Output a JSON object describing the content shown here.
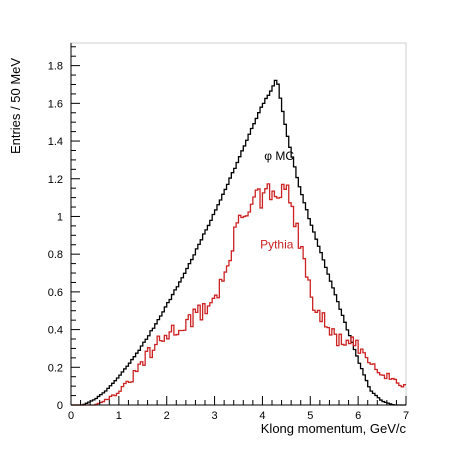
{
  "chart_data": {
    "type": "line",
    "title": "",
    "xlabel": "Klong momentum, GeV/c",
    "ylabel": "Entries / 50 MeV",
    "xlim": [
      0,
      7
    ],
    "ylim": [
      0,
      1.92
    ],
    "x_ticks": [
      0,
      1,
      2,
      3,
      4,
      5,
      6,
      7
    ],
    "y_ticks": [
      0,
      0.2,
      0.4,
      0.6,
      0.8,
      1,
      1.2,
      1.4,
      1.6,
      1.8
    ],
    "x_tick_labels": [
      "0",
      "1",
      "2",
      "3",
      "4",
      "5",
      "6",
      "7"
    ],
    "y_tick_labels": [
      "0",
      "0.2",
      "0.4",
      "0.6",
      "0.8",
      "1",
      "1.2",
      "1.4",
      "1.6",
      "1.8"
    ],
    "grid": false,
    "histogram_bin_width": 0.05,
    "series": [
      {
        "name": "φ MC",
        "color": "#000000",
        "label_position": [
          4.35,
          1.3
        ],
        "x": [
          0,
          0.25,
          0.5,
          0.75,
          1.0,
          1.25,
          1.5,
          1.75,
          2.0,
          2.25,
          2.5,
          2.75,
          3.0,
          3.25,
          3.5,
          3.75,
          4.0,
          4.25,
          4.3,
          4.5,
          4.75,
          5.0,
          5.25,
          5.5,
          5.75,
          6.0,
          6.25,
          6.5,
          6.75,
          7.0
        ],
        "y": [
          0,
          0.0,
          0.03,
          0.08,
          0.15,
          0.23,
          0.32,
          0.42,
          0.53,
          0.64,
          0.76,
          0.89,
          1.02,
          1.16,
          1.3,
          1.45,
          1.59,
          1.7,
          1.74,
          1.45,
          1.18,
          0.97,
          0.79,
          0.6,
          0.42,
          0.24,
          0.08,
          0.02,
          0.0,
          0.0
        ]
      },
      {
        "name": "Pythia",
        "color": "#cc2222",
        "label_position": [
          4.3,
          0.83
        ],
        "x": [
          0,
          0.5,
          0.75,
          1.0,
          1.25,
          1.5,
          1.75,
          2.0,
          2.25,
          2.5,
          2.75,
          3.0,
          3.25,
          3.4,
          3.5,
          3.6,
          3.75,
          3.9,
          4.0,
          4.1,
          4.25,
          4.4,
          4.5,
          4.6,
          4.75,
          4.9,
          5.0,
          5.25,
          5.5,
          5.75,
          6.0,
          6.25,
          6.5,
          6.75,
          7.0
        ],
        "y": [
          0,
          0.0,
          0.03,
          0.07,
          0.13,
          0.23,
          0.3,
          0.37,
          0.41,
          0.45,
          0.5,
          0.57,
          0.7,
          0.86,
          1.0,
          1.03,
          1.05,
          1.12,
          1.06,
          1.15,
          1.08,
          1.12,
          1.2,
          1.03,
          0.9,
          0.72,
          0.58,
          0.45,
          0.36,
          0.33,
          0.3,
          0.23,
          0.18,
          0.13,
          0.1
        ]
      }
    ]
  }
}
